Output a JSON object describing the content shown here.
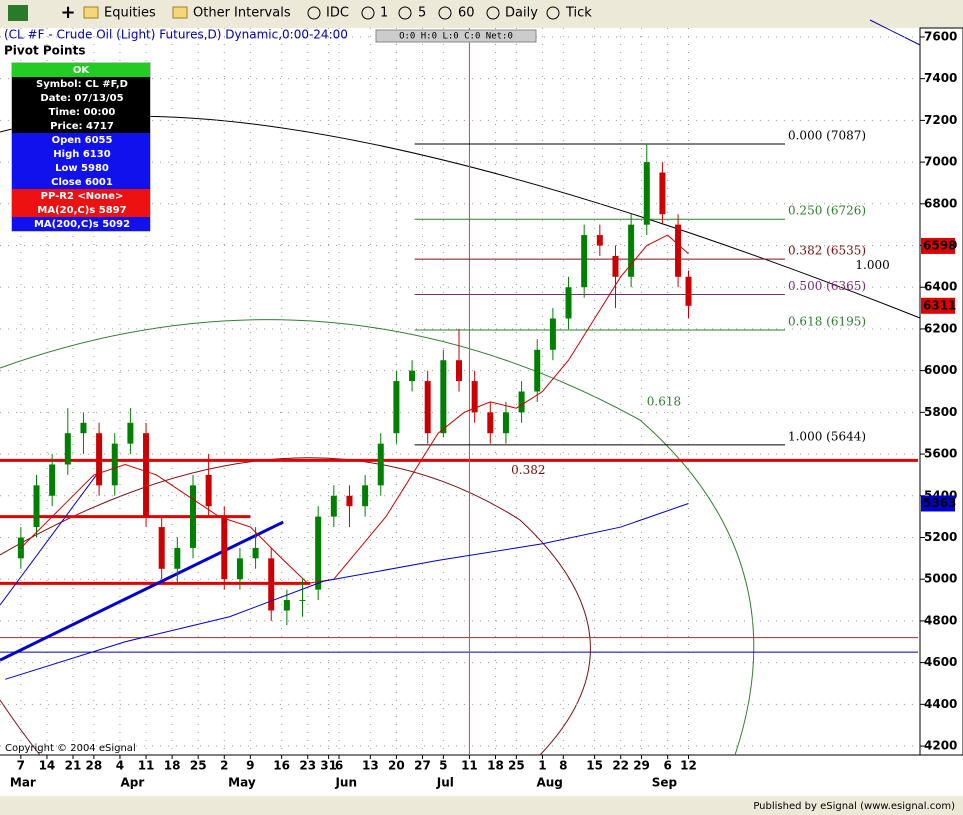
{
  "toolbar": {
    "items": [
      "Equities",
      "Other Intervals",
      "IDC",
      "1",
      "5",
      "60",
      "Daily",
      "Tick"
    ]
  },
  "header": {
    "title": "(CL #F - Crude Oil (Light) Futures,D) Dynamic,0:00-24:00",
    "study": "Pivot Points",
    "readout": "O:0  H:0  L:0  C:0  Net:0"
  },
  "data_window": {
    "status": "OK",
    "rows": [
      "Symbol: CL #F,D",
      "Date: 07/13/05",
      "Time: 00:00",
      "Price: 4717",
      "Open 6055",
      "High 6130",
      "Low 5980",
      "Close 6001",
      "PP-R2 <None>",
      "MA(20,C)s 5897",
      "MA(200,C)s 5092"
    ]
  },
  "footer": {
    "copyright": "Copyright © 2004 eSignal",
    "published": "Published by eSignal (www.esignal.com)"
  },
  "chart_data": {
    "type": "candlestick",
    "x": [
      0,
      3,
      6,
      9,
      12,
      15,
      18,
      21,
      24,
      27,
      30,
      33,
      36,
      39,
      42,
      45,
      48,
      51,
      54,
      57,
      60,
      63,
      66,
      69,
      72,
      75,
      78,
      81,
      84,
      87,
      90,
      93,
      96,
      99,
      102,
      105,
      108,
      111,
      114,
      117,
      120,
      123,
      126,
      128
    ],
    "open": [
      5100,
      5250,
      5400,
      5550,
      5700,
      5700,
      5450,
      5650,
      5700,
      5250,
      5050,
      5150,
      5500,
      5300,
      5000,
      5100,
      5100,
      4850,
      4900,
      4950,
      5300,
      5400,
      5350,
      5450,
      5700,
      5950,
      5950,
      5700,
      6050,
      5950,
      5800,
      5700,
      5800,
      5900,
      6100,
      6250,
      6400,
      6650,
      6550,
      6450,
      6700,
      6950,
      6700,
      6450
    ],
    "high": [
      5250,
      5500,
      5600,
      5820,
      5800,
      5750,
      5700,
      5820,
      5750,
      5300,
      5200,
      5500,
      5600,
      5350,
      5150,
      5250,
      5150,
      4950,
      5000,
      5350,
      5450,
      5450,
      5500,
      5700,
      6000,
      6050,
      6000,
      6100,
      6200,
      6000,
      5850,
      5850,
      5950,
      6150,
      6300,
      6450,
      6700,
      6700,
      6600,
      6750,
      7087,
      7000,
      6750,
      6480
    ],
    "low": [
      5050,
      5200,
      5350,
      5500,
      5600,
      5400,
      5400,
      5600,
      5250,
      5000,
      4980,
      5100,
      5300,
      4950,
      4950,
      5050,
      4800,
      4780,
      4820,
      4900,
      5250,
      5250,
      5300,
      5400,
      5650,
      5900,
      5650,
      5680,
      5900,
      5750,
      5650,
      5650,
      5750,
      5850,
      6050,
      6200,
      6350,
      6550,
      6300,
      6400,
      6650,
      6700,
      6400,
      6250
    ],
    "close": [
      5200,
      5450,
      5550,
      5700,
      5750,
      5450,
      5650,
      5750,
      5300,
      5050,
      5150,
      5450,
      5350,
      5000,
      5100,
      5150,
      4850,
      4900,
      4900,
      5300,
      5400,
      5350,
      5450,
      5650,
      5950,
      6000,
      5700,
      6050,
      5950,
      5800,
      5700,
      5800,
      5900,
      6100,
      6250,
      6400,
      6650,
      6600,
      6450,
      6700,
      7000,
      6750,
      6450,
      6311
    ],
    "colors": {
      "up": "#008000",
      "down": "#cc0000"
    },
    "xlim": [
      -4,
      172
    ],
    "xticks": [
      {
        "value": 0,
        "label": "7"
      },
      {
        "value": 5,
        "label": "14"
      },
      {
        "value": 10,
        "label": "21"
      },
      {
        "value": 14,
        "label": "28"
      },
      {
        "value": 19,
        "label": "4"
      },
      {
        "value": 24,
        "label": "11"
      },
      {
        "value": 29,
        "label": "18"
      },
      {
        "value": 34,
        "label": "25"
      },
      {
        "value": 39,
        "label": "2"
      },
      {
        "value": 44,
        "label": "9"
      },
      {
        "value": 50,
        "label": "16"
      },
      {
        "value": 55,
        "label": "23"
      },
      {
        "value": 59,
        "label": "31"
      },
      {
        "value": 61,
        "label": "6"
      },
      {
        "value": 67,
        "label": "13"
      },
      {
        "value": 72,
        "label": "20"
      },
      {
        "value": 77,
        "label": "27"
      },
      {
        "value": 81,
        "label": "5"
      },
      {
        "value": 86,
        "label": "11"
      },
      {
        "value": 91,
        "label": "18"
      },
      {
        "value": 95,
        "label": "25"
      },
      {
        "value": 100,
        "label": "1"
      },
      {
        "value": 104,
        "label": "8"
      },
      {
        "value": 110,
        "label": "15"
      },
      {
        "value": 115,
        "label": "22"
      },
      {
        "value": 119,
        "label": "29"
      },
      {
        "value": 124,
        "label": "6"
      },
      {
        "value": 128,
        "label": "12"
      }
    ],
    "month_ticks": [
      {
        "value": 0,
        "label": "Mar"
      },
      {
        "value": 21,
        "label": "Apr"
      },
      {
        "value": 42,
        "label": "May"
      },
      {
        "value": 62,
        "label": "Jun"
      },
      {
        "value": 81,
        "label": "Jul"
      },
      {
        "value": 101,
        "label": "Aug"
      },
      {
        "value": 123,
        "label": "Sep"
      }
    ],
    "ylim": [
      4157,
      7643
    ],
    "yticks": [
      4200,
      4400,
      4600,
      4800,
      5000,
      5200,
      5400,
      5600,
      5800,
      6000,
      6200,
      6400,
      6600,
      6800,
      7000,
      7200,
      7400,
      7600
    ],
    "grid": true,
    "series": [
      {
        "color": "#cc0000",
        "x": [
          0,
          8,
          14,
          20,
          26,
          32,
          38,
          44,
          50,
          55,
          60,
          65,
          70,
          75,
          80,
          85,
          90,
          95,
          100,
          105,
          110,
          115,
          120,
          124,
          128
        ],
        "values": [
          5150,
          5350,
          5500,
          5550,
          5500,
          5400,
          5300,
          5250,
          5100,
          4980,
          5000,
          5150,
          5300,
          5500,
          5700,
          5800,
          5850,
          5820,
          5900,
          6050,
          6250,
          6450,
          6600,
          6650,
          6560
        ]
      },
      {
        "color": "#0000cc",
        "x": [
          -3,
          20,
          40,
          58,
          80,
          100,
          115,
          128
        ],
        "values": [
          4520,
          4700,
          4820,
          4990,
          5090,
          5170,
          5250,
          5363
        ]
      }
    ],
    "levels": [
      {
        "value": 5570,
        "color": "#e00000",
        "width": 3,
        "xrange": [
          -4,
          172
        ]
      },
      {
        "value": 5300,
        "color": "#e00000",
        "width": 3,
        "xrange": [
          -4,
          44
        ]
      },
      {
        "value": 4980,
        "color": "#e00000",
        "width": 3,
        "xrange": [
          -4,
          55.5
        ]
      },
      {
        "value": 4720,
        "color": "#a03030",
        "width": 1,
        "xrange": [
          -4,
          172
        ]
      },
      {
        "value": 4650,
        "color": "#0000aa",
        "width": 1,
        "xrange": [
          -4,
          172
        ]
      }
    ],
    "trendlines": [
      {
        "color": "#0000cc",
        "width": 3,
        "x": [
          -4,
          50.3
        ],
        "values": [
          4612,
          5274
        ]
      },
      {
        "color": "#0000cc",
        "width": 1,
        "x": [
          -4,
          15.2
        ],
        "values": [
          4876,
          5524
        ]
      }
    ],
    "vline": {
      "value": 86,
      "color": "#c05050"
    },
    "fib_levels": [
      {
        "value": 7087,
        "label": "0.000 (7087)",
        "color": "#000000"
      },
      {
        "value": 6726,
        "label": "0.250 (6726)",
        "color": "#2f7f2f"
      },
      {
        "value": 6535,
        "label": "0.382 (6535)",
        "color": "#7a1010"
      },
      {
        "value": 6365,
        "label": "0.500 (6365)",
        "color": "#7a2a7a"
      },
      {
        "value": 6195,
        "label": "0.618 (6195)",
        "color": "#2f7f2f"
      },
      {
        "value": 5644,
        "label": "1.000 (5644)",
        "color": "#000000"
      }
    ],
    "fib_xrange": [
      75.5,
      146.5
    ],
    "price_labels": [
      {
        "value": 6598,
        "color": "#e00000"
      },
      {
        "value": 6311,
        "color": "#e00000"
      },
      {
        "value": 5363,
        "color": "#0000cc"
      }
    ],
    "annotations": [
      {
        "label": "0.618",
        "color": "#2f7f2f",
        "x": 120,
        "value": 5850
      },
      {
        "label": "0.382",
        "color": "#7a1010",
        "x": 94,
        "value": 5520
      },
      {
        "label": "1.000",
        "color": "#000000",
        "x": 160,
        "value": 6505
      }
    ]
  }
}
